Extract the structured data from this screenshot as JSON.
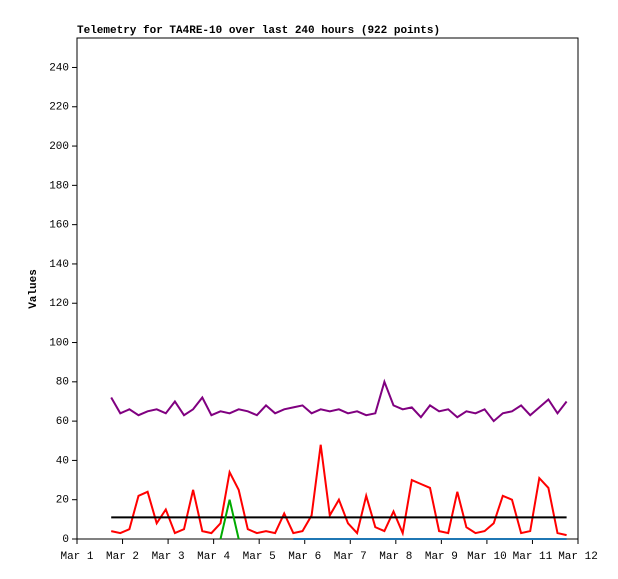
{
  "chart_data": {
    "type": "line",
    "title": "Telemetry for TA4RE-10 over last 240 hours (922 points)",
    "y_label": "Values",
    "xlim": [
      1,
      12
    ],
    "xticks": [
      {
        "value": 1,
        "label": "Mar 1"
      },
      {
        "value": 2,
        "label": "Mar 2"
      },
      {
        "value": 3,
        "label": "Mar 3"
      },
      {
        "value": 4,
        "label": "Mar 4"
      },
      {
        "value": 5,
        "label": "Mar 5"
      },
      {
        "value": 6,
        "label": "Mar 6"
      },
      {
        "value": 7,
        "label": "Mar 7"
      },
      {
        "value": 8,
        "label": "Mar 8"
      },
      {
        "value": 9,
        "label": "Mar 9"
      },
      {
        "value": 10,
        "label": "Mar 10"
      },
      {
        "value": 11,
        "label": "Mar 11"
      },
      {
        "value": 12,
        "label": "Mar 12"
      }
    ],
    "ylim": [
      0,
      255
    ],
    "yticks": [
      0,
      20,
      40,
      60,
      80,
      100,
      120,
      140,
      160,
      180,
      200,
      220,
      240
    ],
    "x": [
      1.75,
      1.95,
      2.15,
      2.35,
      2.55,
      2.75,
      2.95,
      3.15,
      3.35,
      3.55,
      3.75,
      3.95,
      4.15,
      4.35,
      4.55,
      4.75,
      4.95,
      5.15,
      5.35,
      5.55,
      5.75,
      5.95,
      6.15,
      6.35,
      6.55,
      6.75,
      6.95,
      7.15,
      7.35,
      7.55,
      7.75,
      7.95,
      8.15,
      8.35,
      8.55,
      8.75,
      8.95,
      9.15,
      9.35,
      9.55,
      9.75,
      9.95,
      10.15,
      10.35,
      10.55,
      10.75,
      10.95,
      11.15,
      11.35,
      11.55,
      11.75
    ],
    "series": [
      {
        "color": "#800080",
        "values": [
          72,
          64,
          66,
          63,
          65,
          66,
          64,
          70,
          63,
          66,
          72,
          63,
          65,
          64,
          66,
          65,
          63,
          68,
          64,
          66,
          67,
          68,
          64,
          66,
          65,
          66,
          64,
          65,
          63,
          64,
          80,
          68,
          66,
          67,
          62,
          68,
          65,
          66,
          62,
          65,
          64,
          66,
          60,
          64,
          65,
          68,
          63,
          67,
          71,
          64,
          70
        ]
      },
      {
        "color": "#ff0000",
        "values": [
          4,
          3,
          5,
          22,
          24,
          8,
          15,
          3,
          5,
          25,
          4,
          3,
          8,
          34,
          25,
          5,
          3,
          4,
          3,
          13,
          3,
          4,
          12,
          48,
          12,
          20,
          8,
          3,
          22,
          6,
          4,
          14,
          3,
          30,
          28,
          26,
          4,
          3,
          24,
          6,
          3,
          4,
          8,
          22,
          20,
          3,
          4,
          31,
          26,
          3,
          2
        ]
      },
      {
        "color": "#000000",
        "values": [
          11,
          11,
          11,
          11,
          11,
          11,
          11,
          11,
          11,
          11,
          11,
          11,
          11,
          11,
          11,
          11,
          11,
          11,
          11,
          11,
          11,
          11,
          11,
          11,
          11,
          11,
          11,
          11,
          11,
          11,
          11,
          11,
          11,
          11,
          11,
          11,
          11,
          11,
          11,
          11,
          11,
          11,
          11,
          11,
          11,
          11,
          11,
          11,
          11,
          11,
          11
        ]
      },
      {
        "color": "#00aa00",
        "values": [
          null,
          null,
          null,
          null,
          null,
          null,
          null,
          null,
          null,
          null,
          null,
          null,
          0,
          20,
          0,
          null,
          null,
          null,
          null,
          null,
          null,
          null,
          null,
          null,
          null,
          null,
          null,
          null,
          null,
          null,
          null,
          null,
          null,
          null,
          null,
          null,
          null,
          null,
          null,
          null,
          null,
          null,
          null,
          null,
          null,
          null,
          null,
          null,
          null,
          null,
          null
        ]
      },
      {
        "color": "#1f77b4",
        "values": [
          null,
          null,
          null,
          null,
          null,
          null,
          null,
          null,
          null,
          null,
          null,
          null,
          null,
          null,
          null,
          null,
          null,
          null,
          null,
          null,
          0,
          0,
          0,
          0,
          0,
          0,
          0,
          0,
          0,
          0,
          0,
          0,
          0,
          0,
          0,
          0,
          0,
          0,
          0,
          0,
          0,
          0,
          0,
          0,
          0,
          0,
          0,
          0,
          0,
          0,
          0
        ]
      }
    ]
  }
}
